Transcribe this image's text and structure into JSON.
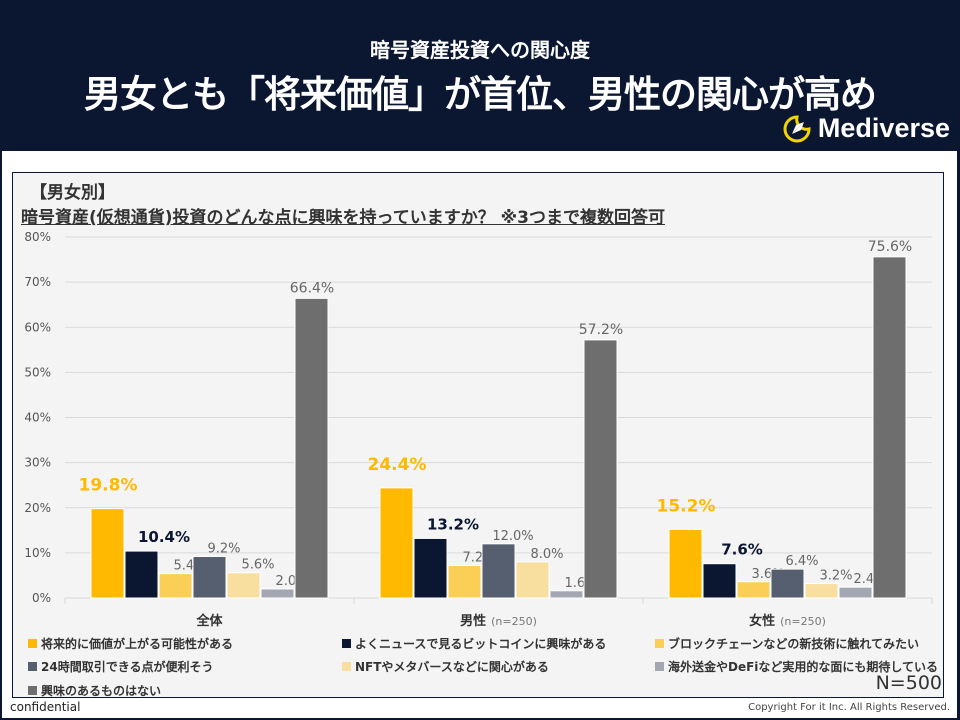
{
  "header": {
    "subtitle": "暗号資産投資への関心度",
    "title": "男女とも「将来価値」が首位、男性の関心が高め",
    "brand": "Mediverse"
  },
  "panel": {
    "tag": "【男女別】",
    "question": "暗号資産(仮想通貨)投資のどんな点に興味を持っていますか？ ※3つまで複数回答可",
    "sample_size": "N=500"
  },
  "footer": {
    "left": "confidential",
    "right": "Copyright For it Inc. All Rights Reserved."
  },
  "chart_data": {
    "type": "bar",
    "title": "暗号資産(仮想通貨)投資のどんな点に興味を持っていますか？ ※3つまで複数回答可",
    "xlabel": "",
    "ylabel": "",
    "ylim": [
      0,
      80
    ],
    "yticks": [
      0,
      10,
      20,
      30,
      40,
      50,
      60,
      70,
      80
    ],
    "ytick_labels": [
      "0%",
      "10%",
      "20%",
      "30%",
      "40%",
      "50%",
      "60%",
      "70%",
      "80%"
    ],
    "grid": true,
    "legend_position": "bottom",
    "categories": [
      "全体",
      "男性",
      "女性"
    ],
    "category_notes": [
      "",
      "(n=250)",
      "(n=250)"
    ],
    "series": [
      {
        "name": "将来的に価値が上がる可能性がある",
        "color": "#ffb900",
        "label_color": "#ffb900",
        "label_bold": true,
        "label_size": "large",
        "values": [
          19.8,
          24.4,
          15.2
        ]
      },
      {
        "name": "よくニュースで見るビットコインに興味がある",
        "color": "#0b1731",
        "label_color": "#0b1731",
        "label_bold": true,
        "label_size": "medium",
        "values": [
          10.4,
          13.2,
          7.6
        ]
      },
      {
        "name": "ブロックチェーンなどの新技術に触れてみたい",
        "color": "#fbcf55",
        "label_color": "#666666",
        "label_bold": false,
        "label_size": "small",
        "values": [
          5.4,
          7.2,
          3.6
        ]
      },
      {
        "name": "24時間取引できる点が便利そう",
        "color": "#565f6f",
        "label_color": "#666666",
        "label_bold": false,
        "label_size": "small",
        "values": [
          9.2,
          12.0,
          6.4
        ]
      },
      {
        "name": "NFTやメタバースなどに関心がある",
        "color": "#f8dfa0",
        "label_color": "#666666",
        "label_bold": false,
        "label_size": "small",
        "values": [
          5.6,
          8.0,
          3.2
        ]
      },
      {
        "name": "海外送金やDeFiなど実用的な面にも期待している",
        "color": "#a3a7b1",
        "label_color": "#666666",
        "label_bold": false,
        "label_size": "small",
        "values": [
          2.0,
          1.6,
          2.4
        ]
      },
      {
        "name": "興味のあるものはない",
        "color": "#6e6e6e",
        "label_color": "#666666",
        "label_bold": false,
        "label_size": "small",
        "values": [
          66.4,
          57.2,
          75.6
        ]
      }
    ]
  }
}
